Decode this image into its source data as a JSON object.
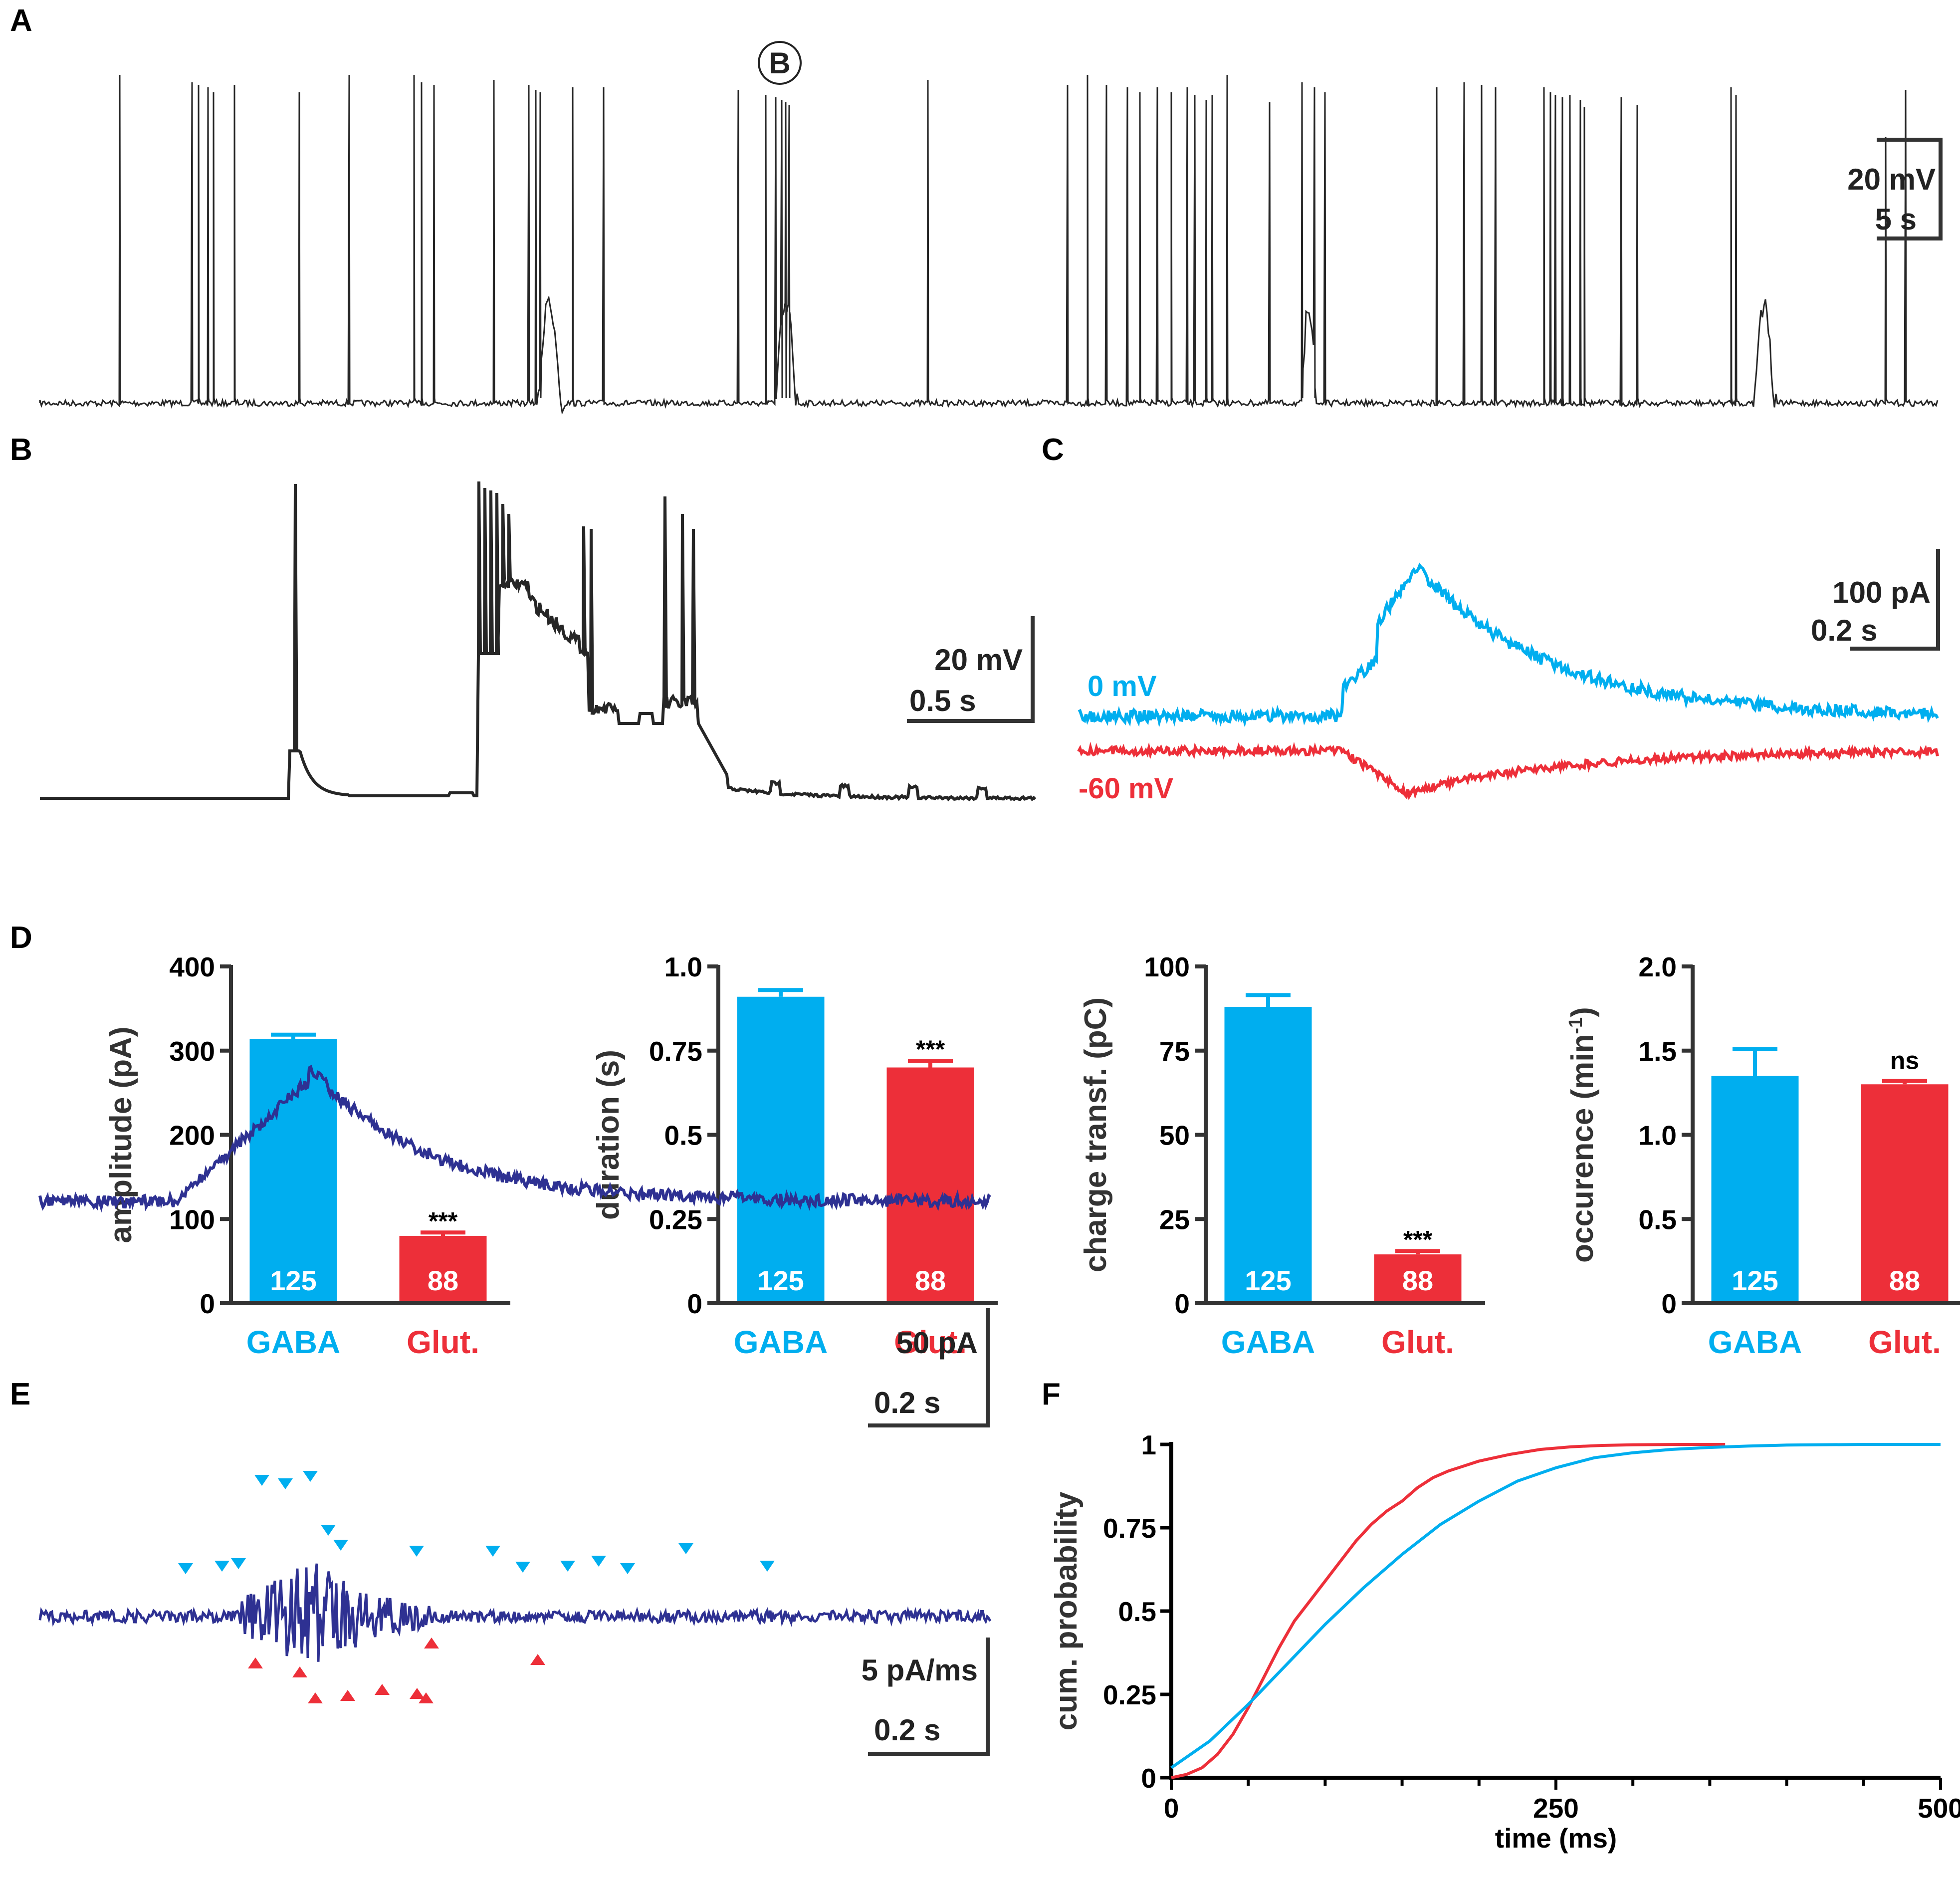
{
  "panels": {
    "A": "A",
    "B": "B",
    "C": "C",
    "D": "D",
    "E": "E",
    "F": "F"
  },
  "colors": {
    "gaba": "#00aeef",
    "glut": "#ed2f39",
    "trace": "#262626",
    "deriv": "#2e3192"
  },
  "panelA": {
    "marker": "B",
    "scale_v": "20 mV",
    "scale_t": "5 s"
  },
  "panelB": {
    "scale_v": "20 mV",
    "scale_t": "0.5 s"
  },
  "panelC": {
    "label_gaba": "0 mV",
    "label_glut": "-60 mV",
    "scale_i": "100 pA",
    "scale_t": "0.2 s"
  },
  "panelE": {
    "scale_i": "50 pA",
    "scale_t1": "0.2 s",
    "scale_d": "5 pA/ms",
    "scale_t2": "0.2 s"
  },
  "chart_data": [
    {
      "type": "bar",
      "panel": "D",
      "ylabel": "amplitude (pA)",
      "categories": [
        "GABA",
        "Glut."
      ],
      "values": [
        314,
        80
      ],
      "errors": [
        5,
        4
      ],
      "n": [
        "125",
        "88"
      ],
      "ylim": [
        0,
        400
      ],
      "yticks": [
        0,
        100,
        200,
        300,
        400
      ],
      "ytick_labels": [
        "0",
        "100",
        "200",
        "300",
        "400"
      ],
      "sig": "***"
    },
    {
      "type": "bar",
      "panel": "D",
      "ylabel": "duration (s)",
      "categories": [
        "GABA",
        "Glut."
      ],
      "values": [
        0.91,
        0.7
      ],
      "errors": [
        0.02,
        0.02
      ],
      "n": [
        "125",
        "88"
      ],
      "ylim": [
        0,
        1.0
      ],
      "yticks": [
        0,
        0.25,
        0.5,
        0.75,
        1.0
      ],
      "ytick_labels": [
        "0",
        "0.25",
        "0.5",
        "0.75",
        "1.0"
      ],
      "sig": "***"
    },
    {
      "type": "bar",
      "panel": "D",
      "ylabel": "charge transf. (pC)",
      "categories": [
        "GABA",
        "Glut."
      ],
      "values": [
        88,
        14.5
      ],
      "errors": [
        3.5,
        1
      ],
      "n": [
        "125",
        "88"
      ],
      "ylim": [
        0,
        100
      ],
      "yticks": [
        0,
        25,
        50,
        75,
        100
      ],
      "ytick_labels": [
        "0",
        "25",
        "50",
        "75",
        "100"
      ],
      "sig": "***"
    },
    {
      "type": "bar",
      "panel": "D",
      "ylabel": "occurence (min",
      "ylabel_sup": "-1",
      "ylabel_end": ")",
      "categories": [
        "GABA",
        "Glut."
      ],
      "values": [
        1.35,
        1.3
      ],
      "errors": [
        0.16,
        0.02
      ],
      "n": [
        "125",
        "88"
      ],
      "ylim": [
        0,
        2.0
      ],
      "yticks": [
        0,
        0.5,
        1.0,
        1.5,
        2.0
      ],
      "ytick_labels": [
        "0",
        "0.5",
        "1.0",
        "1.5",
        "2.0"
      ],
      "sig": "ns"
    },
    {
      "type": "line",
      "panel": "F",
      "xlabel": "time (ms)",
      "ylabel": "cum. probability",
      "xlim": [
        0,
        500
      ],
      "ylim": [
        0,
        1
      ],
      "xticks": [
        0,
        250,
        500
      ],
      "xtick_labels": [
        "0",
        "250",
        "500"
      ],
      "yticks": [
        0,
        0.25,
        0.5,
        0.75,
        1
      ],
      "ytick_labels": [
        "0",
        "0.25",
        "0.5",
        "0.75",
        "1"
      ],
      "series": [
        {
          "name": "Glut.",
          "x": [
            0,
            10,
            20,
            30,
            40,
            50,
            60,
            70,
            80,
            90,
            100,
            110,
            120,
            130,
            140,
            150,
            160,
            170,
            180,
            200,
            220,
            240,
            260,
            280,
            300,
            330,
            360
          ],
          "y": [
            0,
            0.01,
            0.03,
            0.07,
            0.13,
            0.21,
            0.3,
            0.39,
            0.47,
            0.53,
            0.59,
            0.65,
            0.71,
            0.76,
            0.8,
            0.83,
            0.87,
            0.9,
            0.92,
            0.95,
            0.97,
            0.985,
            0.993,
            0.997,
            0.999,
            1,
            1
          ]
        },
        {
          "name": "GABA",
          "x": [
            0,
            25,
            50,
            75,
            100,
            125,
            150,
            175,
            200,
            225,
            250,
            275,
            300,
            325,
            350,
            375,
            400,
            450,
            500
          ],
          "y": [
            0.03,
            0.11,
            0.22,
            0.34,
            0.46,
            0.57,
            0.67,
            0.76,
            0.83,
            0.89,
            0.93,
            0.96,
            0.975,
            0.985,
            0.991,
            0.995,
            0.998,
            1,
            1
          ]
        }
      ]
    }
  ]
}
